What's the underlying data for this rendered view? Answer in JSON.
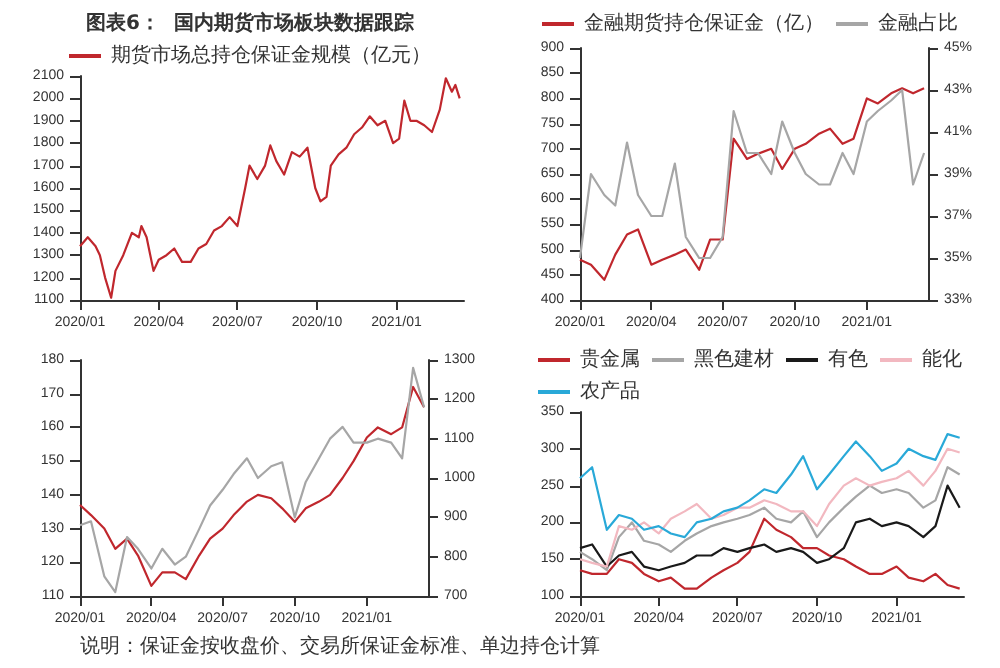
{
  "chart_data": [
    {
      "type": "line",
      "title": "图表6：  国内期货市场板块数据跟踪",
      "legend": "top",
      "marker": "none",
      "x": [
        "2020-01-01",
        "2020-01-10",
        "2020-01-19",
        "2020-01-24",
        "2020-01-30",
        "2020-02-06",
        "2020-02-11",
        "2020-02-20",
        "2020-03-01",
        "2020-03-09",
        "2020-03-12",
        "2020-03-18",
        "2020-03-26",
        "2020-04-01",
        "2020-04-10",
        "2020-04-19",
        "2020-04-28",
        "2020-05-08",
        "2020-05-17",
        "2020-05-26",
        "2020-06-04",
        "2020-06-13",
        "2020-06-22",
        "2020-07-01",
        "2020-07-10",
        "2020-07-15",
        "2020-07-24",
        "2020-08-02",
        "2020-08-08",
        "2020-08-15",
        "2020-08-24",
        "2020-09-02",
        "2020-09-11",
        "2020-09-20",
        "2020-09-29",
        "2020-10-05",
        "2020-10-12",
        "2020-10-17",
        "2020-10-26",
        "2020-11-04",
        "2020-11-13",
        "2020-11-22",
        "2020-12-01",
        "2020-12-10",
        "2020-12-19",
        "2020-12-28",
        "2021-01-04",
        "2021-01-10",
        "2021-01-17",
        "2021-01-24",
        "2021-02-02",
        "2021-02-11",
        "2021-02-20",
        "2021-02-27",
        "2021-03-06",
        "2021-03-10",
        "2021-03-15"
      ],
      "xlim": [
        "2020-01-01",
        "2021-03-20"
      ],
      "xticks": [
        {
          "value": "2020-01",
          "label": "2020/01"
        },
        {
          "value": "2020-04",
          "label": "2020/04"
        },
        {
          "value": "2020-07",
          "label": "2020/07"
        },
        {
          "value": "2020-10",
          "label": "2020/10"
        },
        {
          "value": "2021-01",
          "label": "2021/01"
        }
      ],
      "ylim": [
        1100,
        2100
      ],
      "yticks": [
        1100,
        1200,
        1300,
        1400,
        1500,
        1600,
        1700,
        1800,
        1900,
        2000,
        2100
      ],
      "series": [
        {
          "name": "期货市场总持仓保证金规模（亿元）",
          "color": "#c0272d",
          "values": [
            1340,
            1380,
            1340,
            1300,
            1200,
            1110,
            1230,
            1300,
            1400,
            1380,
            1430,
            1380,
            1230,
            1280,
            1300,
            1330,
            1270,
            1270,
            1330,
            1350,
            1410,
            1430,
            1470,
            1430,
            1600,
            1700,
            1640,
            1700,
            1790,
            1720,
            1660,
            1760,
            1740,
            1780,
            1600,
            1540,
            1560,
            1700,
            1750,
            1780,
            1840,
            1870,
            1920,
            1880,
            1900,
            1800,
            1820,
            1990,
            1900,
            1900,
            1880,
            1850,
            1950,
            2090,
            2030,
            2060,
            2000
          ]
        }
      ]
    },
    {
      "type": "line",
      "legend": "top",
      "marker": "none",
      "x": [
        "2020-01-01",
        "2020-01-15",
        "2020-02-01",
        "2020-02-15",
        "2020-03-01",
        "2020-03-15",
        "2020-04-01",
        "2020-04-15",
        "2020-05-01",
        "2020-05-15",
        "2020-06-01",
        "2020-06-15",
        "2020-07-01",
        "2020-07-15",
        "2020-08-01",
        "2020-08-15",
        "2020-09-01",
        "2020-09-15",
        "2020-10-01",
        "2020-10-15",
        "2020-11-01",
        "2020-11-15",
        "2020-12-01",
        "2020-12-15",
        "2021-01-01",
        "2021-01-15",
        "2021-02-01",
        "2021-02-15",
        "2021-03-01",
        "2021-03-15"
      ],
      "xlim": [
        "2020-01-01",
        "2021-03-20"
      ],
      "xticks": [
        {
          "value": "2020-01",
          "label": "2020/01"
        },
        {
          "value": "2020-04",
          "label": "2020/04"
        },
        {
          "value": "2020-07",
          "label": "2020/07"
        },
        {
          "value": "2020-10",
          "label": "2020/10"
        },
        {
          "value": "2021-01",
          "label": "2021/01"
        }
      ],
      "ylim": [
        400,
        900
      ],
      "yticks": [
        400,
        450,
        500,
        550,
        600,
        650,
        700,
        750,
        800,
        850,
        900
      ],
      "y2lim": [
        33,
        45
      ],
      "y2ticks": [
        {
          "value": 33,
          "label": "33%"
        },
        {
          "value": 35,
          "label": "35%"
        },
        {
          "value": 37,
          "label": "37%"
        },
        {
          "value": 39,
          "label": "39%"
        },
        {
          "value": 41,
          "label": "41%"
        },
        {
          "value": 43,
          "label": "43%"
        },
        {
          "value": 45,
          "label": "45%"
        }
      ],
      "series": [
        {
          "name": "金融期货持仓保证金（亿）",
          "color": "#c0272d",
          "values": [
            480,
            470,
            440,
            490,
            530,
            540,
            470,
            480,
            490,
            500,
            460,
            520,
            520,
            720,
            680,
            690,
            700,
            660,
            700,
            710,
            730,
            740,
            710,
            720,
            800,
            790,
            810,
            820,
            810,
            820
          ]
        },
        {
          "name": "金融占比",
          "color": "#a6a6a6",
          "axis": "y2",
          "values": [
            35,
            39,
            38,
            37.5,
            40.5,
            38,
            37,
            37,
            39.5,
            36,
            35,
            35,
            36,
            42,
            40,
            40,
            39,
            41.5,
            40,
            39,
            38.5,
            38.5,
            40,
            39,
            41.5,
            42,
            42.5,
            43,
            38.5,
            40
          ]
        }
      ]
    },
    {
      "type": "line",
      "marker": "none",
      "annotations": [
        "说明：保证金按收盘价、交易所保证金标准、单边持仓计算"
      ],
      "x": [
        "2020-01-01",
        "2020-01-15",
        "2020-02-01",
        "2020-02-15",
        "2020-03-01",
        "2020-03-15",
        "2020-04-01",
        "2020-04-15",
        "2020-05-01",
        "2020-05-15",
        "2020-06-01",
        "2020-06-15",
        "2020-07-01",
        "2020-07-15",
        "2020-08-01",
        "2020-08-15",
        "2020-09-01",
        "2020-09-15",
        "2020-10-01",
        "2020-10-15",
        "2020-11-01",
        "2020-11-15",
        "2020-12-01",
        "2020-12-15",
        "2021-01-01",
        "2021-01-15",
        "2021-02-01",
        "2021-02-15",
        "2021-03-01",
        "2021-03-15"
      ],
      "xlim": [
        "2020-01-01",
        "2021-03-20"
      ],
      "xticks": [
        {
          "value": "2020-01",
          "label": "2020/01"
        },
        {
          "value": "2020-04",
          "label": "2020/04"
        },
        {
          "value": "2020-07",
          "label": "2020/07"
        },
        {
          "value": "2020-10",
          "label": "2020/10"
        },
        {
          "value": "2021-01",
          "label": "2021/01"
        }
      ],
      "ylim": [
        110,
        180
      ],
      "yticks": [
        110,
        120,
        130,
        140,
        150,
        160,
        170,
        180
      ],
      "y2lim": [
        700,
        1300
      ],
      "y2ticks": [
        700,
        800,
        900,
        1000,
        1100,
        1200,
        1300
      ],
      "series": [
        {
          "color": "#c0272d",
          "values": [
            137,
            134,
            130,
            124,
            127,
            122,
            113,
            117,
            117,
            115,
            122,
            127,
            130,
            134,
            138,
            140,
            139,
            136,
            132,
            136,
            138,
            140,
            145,
            150,
            157,
            160,
            158,
            160,
            172,
            166
          ]
        },
        {
          "color": "#a6a6a6",
          "axis": "y2",
          "values": [
            880,
            890,
            750,
            710,
            850,
            820,
            770,
            820,
            780,
            800,
            870,
            930,
            970,
            1010,
            1050,
            1000,
            1030,
            1040,
            900,
            990,
            1050,
            1100,
            1130,
            1090,
            1090,
            1100,
            1090,
            1050,
            1280,
            1180
          ]
        }
      ]
    },
    {
      "type": "line",
      "legend": "top",
      "marker": "none",
      "x": [
        "2020-01-01",
        "2020-01-15",
        "2020-02-01",
        "2020-02-15",
        "2020-03-01",
        "2020-03-15",
        "2020-04-01",
        "2020-04-15",
        "2020-05-01",
        "2020-05-15",
        "2020-06-01",
        "2020-06-15",
        "2020-07-01",
        "2020-07-15",
        "2020-08-01",
        "2020-08-15",
        "2020-09-01",
        "2020-09-15",
        "2020-10-01",
        "2020-10-15",
        "2020-11-01",
        "2020-11-15",
        "2020-12-01",
        "2020-12-15",
        "2021-01-01",
        "2021-01-15",
        "2021-02-01",
        "2021-02-15",
        "2021-03-01",
        "2021-03-15"
      ],
      "xlim": [
        "2020-01-01",
        "2021-03-20"
      ],
      "xticks": [
        {
          "value": "2020-01",
          "label": "2020/01"
        },
        {
          "value": "2020-04",
          "label": "2020/04"
        },
        {
          "value": "2020-07",
          "label": "2020/07"
        },
        {
          "value": "2020-10",
          "label": "2020/10"
        },
        {
          "value": "2021-01",
          "label": "2021/01"
        }
      ],
      "ylim": [
        100,
        350
      ],
      "yticks": [
        100,
        150,
        200,
        250,
        300,
        350
      ],
      "series": [
        {
          "name": "贵金属",
          "color": "#c0272d",
          "values": [
            135,
            130,
            130,
            150,
            145,
            130,
            120,
            125,
            110,
            110,
            125,
            135,
            145,
            160,
            205,
            190,
            180,
            165,
            165,
            155,
            150,
            140,
            130,
            130,
            140,
            125,
            120,
            130,
            115,
            110
          ]
        },
        {
          "name": "黑色建材",
          "color": "#a6a6a6",
          "values": [
            160,
            150,
            135,
            180,
            200,
            175,
            170,
            160,
            175,
            185,
            195,
            200,
            205,
            210,
            220,
            205,
            200,
            215,
            180,
            200,
            220,
            235,
            250,
            240,
            245,
            240,
            220,
            230,
            275,
            265
          ]
        },
        {
          "name": "有色",
          "color": "#1a1a1a",
          "values": [
            165,
            170,
            140,
            155,
            160,
            140,
            135,
            140,
            145,
            155,
            155,
            165,
            160,
            165,
            170,
            160,
            165,
            160,
            145,
            150,
            165,
            200,
            205,
            195,
            200,
            195,
            180,
            195,
            250,
            220
          ]
        },
        {
          "name": "能化",
          "color": "#f2b8c0",
          "values": [
            150,
            145,
            140,
            195,
            190,
            200,
            185,
            205,
            215,
            225,
            205,
            210,
            220,
            220,
            230,
            225,
            215,
            215,
            195,
            225,
            250,
            260,
            250,
            255,
            260,
            270,
            250,
            270,
            300,
            295
          ]
        },
        {
          "name": "农产品",
          "color": "#29a9d8",
          "values": [
            260,
            275,
            190,
            210,
            205,
            190,
            195,
            185,
            180,
            200,
            205,
            215,
            220,
            230,
            245,
            240,
            265,
            290,
            245,
            265,
            290,
            310,
            290,
            270,
            280,
            300,
            290,
            285,
            320,
            315
          ]
        }
      ]
    }
  ]
}
